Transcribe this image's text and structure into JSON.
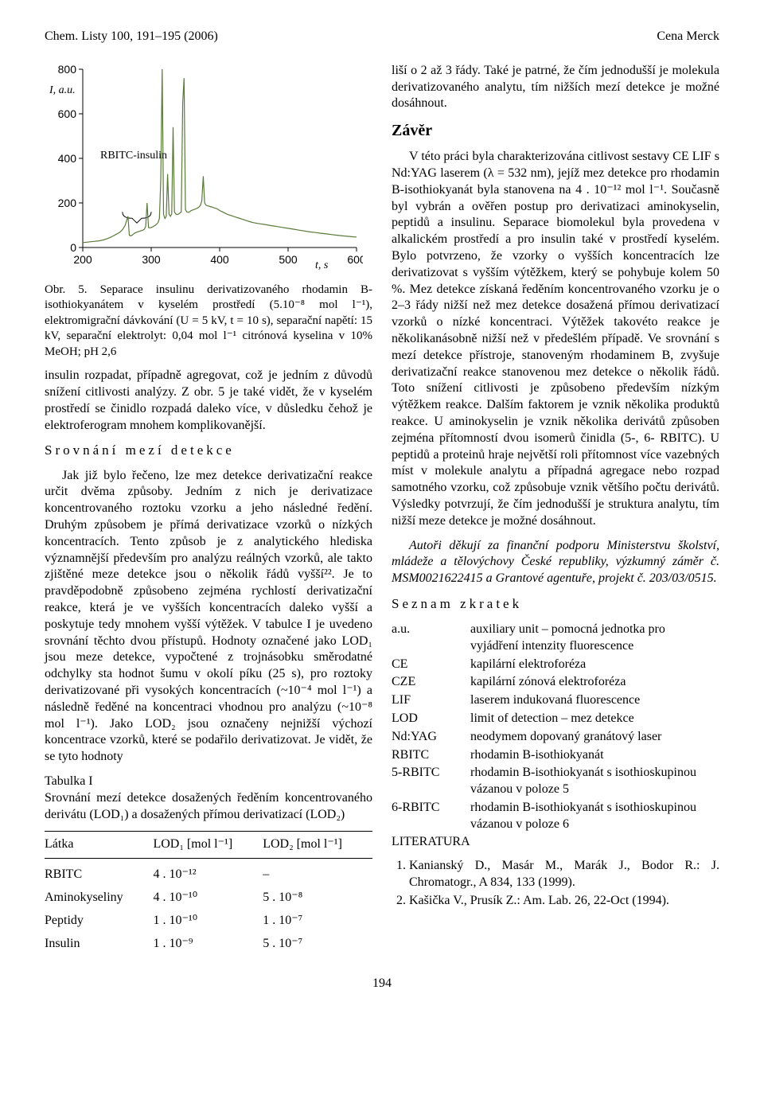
{
  "header": {
    "left": "Chem. Listy 100, 191–195 (2006)",
    "right": "Cena Merck"
  },
  "page_number": "194",
  "left_col": {
    "figure": {
      "y_axis_label": "I, a.u.",
      "x_axis_label": "t, s",
      "annotation": "RBITC-insulin",
      "y_ticks": [
        0,
        200,
        400,
        600,
        800
      ],
      "x_ticks": [
        200,
        300,
        400,
        500,
        600
      ],
      "xlim": [
        200,
        600
      ],
      "ylim": [
        0,
        800
      ],
      "line_color": "#5a7a3a",
      "axis_color": "#000000",
      "background_color": "#ffffff",
      "fontsize": 14,
      "points": [
        [
          200,
          22
        ],
        [
          206,
          24
        ],
        [
          212,
          26
        ],
        [
          218,
          28
        ],
        [
          224,
          30
        ],
        [
          230,
          34
        ],
        [
          236,
          40
        ],
        [
          242,
          48
        ],
        [
          248,
          58
        ],
        [
          254,
          68
        ],
        [
          258,
          80
        ],
        [
          262,
          100
        ],
        [
          266,
          140
        ],
        [
          268,
          55
        ],
        [
          270,
          52
        ],
        [
          272,
          55
        ],
        [
          274,
          60
        ],
        [
          276,
          65
        ],
        [
          278,
          68
        ],
        [
          280,
          70
        ],
        [
          282,
          72
        ],
        [
          284,
          74
        ],
        [
          286,
          76
        ],
        [
          288,
          78
        ],
        [
          290,
          82
        ],
        [
          292,
          95
        ],
        [
          294,
          200
        ],
        [
          296,
          90
        ],
        [
          298,
          88
        ],
        [
          300,
          90
        ],
        [
          302,
          92
        ],
        [
          304,
          96
        ],
        [
          306,
          100
        ],
        [
          308,
          105
        ],
        [
          310,
          112
        ],
        [
          312,
          130
        ],
        [
          314,
          300
        ],
        [
          316,
          820
        ],
        [
          318,
          150
        ],
        [
          320,
          130
        ],
        [
          322,
          140
        ],
        [
          324,
          330
        ],
        [
          326,
          150
        ],
        [
          328,
          140
        ],
        [
          330,
          150
        ],
        [
          332,
          540
        ],
        [
          334,
          160
        ],
        [
          336,
          150
        ],
        [
          338,
          148
        ],
        [
          340,
          150
        ],
        [
          342,
          155
        ],
        [
          344,
          160
        ],
        [
          346,
          650
        ],
        [
          348,
          760
        ],
        [
          350,
          170
        ],
        [
          352,
          160
        ],
        [
          354,
          158
        ],
        [
          356,
          160
        ],
        [
          358,
          165
        ],
        [
          360,
          168
        ],
        [
          362,
          170
        ],
        [
          364,
          172
        ],
        [
          366,
          175
        ],
        [
          368,
          178
        ],
        [
          370,
          182
        ],
        [
          372,
          190
        ],
        [
          374,
          210
        ],
        [
          376,
          320
        ],
        [
          378,
          200
        ],
        [
          380,
          190
        ],
        [
          382,
          188
        ],
        [
          384,
          186
        ],
        [
          386,
          184
        ],
        [
          388,
          182
        ],
        [
          390,
          180
        ],
        [
          392,
          178
        ],
        [
          394,
          176
        ],
        [
          396,
          174
        ],
        [
          398,
          170
        ],
        [
          400,
          166
        ],
        [
          404,
          160
        ],
        [
          408,
          154
        ],
        [
          412,
          148
        ],
        [
          416,
          144
        ],
        [
          420,
          140
        ],
        [
          424,
          136
        ],
        [
          428,
          132
        ],
        [
          432,
          128
        ],
        [
          436,
          124
        ],
        [
          440,
          120
        ],
        [
          444,
          116
        ],
        [
          448,
          112
        ],
        [
          452,
          110
        ],
        [
          456,
          108
        ],
        [
          460,
          106
        ],
        [
          464,
          104
        ],
        [
          468,
          102
        ],
        [
          472,
          100
        ],
        [
          476,
          98
        ],
        [
          480,
          96
        ],
        [
          484,
          94
        ],
        [
          488,
          92
        ],
        [
          492,
          90
        ],
        [
          496,
          88
        ],
        [
          500,
          86
        ],
        [
          508,
          82
        ],
        [
          516,
          78
        ],
        [
          524,
          74
        ],
        [
          532,
          70
        ],
        [
          540,
          67
        ],
        [
          548,
          64
        ],
        [
          556,
          61
        ],
        [
          564,
          58
        ],
        [
          572,
          55
        ],
        [
          580,
          52
        ],
        [
          588,
          50
        ],
        [
          596,
          48
        ],
        [
          600,
          47
        ]
      ]
    },
    "caption": "Obr. 5. Separace insulinu derivatizovaného rhodamin B-isothiokyanátem v kyselém prostředí (5.10⁻⁸ mol l⁻¹), elektromigrační dávkování (U = 5 kV, t = 10 s), separační napětí: 15 kV, separační elektrolyt: 0,04 mol l⁻¹ citrónová kyselina v 10% MeOH; pH 2,6",
    "para1": "insulin rozpadat, případně agregovat, což je jedním z důvodů snížení citlivosti analýzy. Z obr. 5 je také vidět, že v kyselém prostředí se činidlo rozpadá daleko více, v důsledku čehož je elektroferogram mnohem komplikovanější.",
    "subheading": "Srovnání mezí detekce",
    "para2": "Jak již bylo řečeno, lze mez detekce derivatizační reakce určit dvěma způsoby. Jedním z nich je derivatizace koncentrovaného roztoku vzorku a jeho následné ředění. Druhým způsobem je přímá derivatizace vzorků o nízkých koncentracích. Tento způsob je z analytického hlediska významnější především pro analýzu reálných vzorků, ale takto zjištěné meze detekce jsou o několik řádů vyšší²². Je to pravděpodobně způsobeno zejména rychlostí derivatizační reakce, která je ve vyšších koncentracích daleko vyšší a poskytuje tedy mnohem vyšší výtěžek. V tabulce I je uvedeno srovnání těchto dvou přístupů. Hodnoty označené jako LOD₁ jsou meze detekce, vypočtené z trojnásobku směrodatné odchylky sta hodnot šumu v okolí píku (25 s), pro roztoky derivatizované při vysokých koncentracích (~10⁻⁴ mol l⁻¹) a následně ředěné na koncentraci vhodnou pro analýzu (~10⁻⁸ mol l⁻¹). Jako LOD₂ jsou označeny nejnižší výchozí koncentrace vzorků, které se podařilo derivatizovat. Je vidět, že se tyto hodnoty",
    "table": {
      "title": "Tabulka I",
      "caption": "Srovnání mezí detekce dosažených ředěním koncentrovaného derivátu (LOD₁) a dosažených přímou derivatizací (LOD₂)",
      "columns": [
        "Látka",
        "LOD₁ [mol l⁻¹]",
        "LOD₂ [mol l⁻¹]"
      ],
      "rows": [
        [
          "RBITC",
          "4 . 10⁻¹²",
          "–"
        ],
        [
          "Aminokyseliny",
          "4 . 10⁻¹⁰",
          "5 . 10⁻⁸"
        ],
        [
          "Peptidy",
          "1 . 10⁻¹⁰",
          "1 . 10⁻⁷"
        ],
        [
          "Insulin",
          "1 . 10⁻⁹",
          "5 . 10⁻⁷"
        ]
      ]
    }
  },
  "right_col": {
    "para_top": "liší o 2 až 3 řády. Také je patrné, že čím jednodušší je molekula derivatizovaného analytu, tím nižších mezí detekce je možné dosáhnout.",
    "zaver_heading": "Závěr",
    "zaver_body": "V této práci byla charakterizována citlivost sestavy CE LIF s Nd:YAG laserem (λ = 532 nm), jejíž mez detekce pro rhodamin B-isothiokyanát byla stanovena na 4 . 10⁻¹² mol l⁻¹. Současně byl vybrán a ověřen postup pro derivatizaci aminokyselin, peptidů a insulinu. Separace biomolekul byla provedena v alkalickém prostředí a pro insulin také v prostředí kyselém. Bylo potvrzeno, že vzorky o vyšších koncentracích lze derivatizovat s vyšším výtěžkem, který se pohybuje kolem 50 %. Mez detekce získaná ředěním koncentrovaného vzorku je o 2–3 řády nižší než mez detekce dosažená přímou derivatizací vzorků o nízké koncentraci. Výtěžek takovéto reakce je několikanásobně nižší než v předešlém případě. Ve srovnání s mezí detekce přístroje, stanoveným rhodaminem B, zvyšuje derivatizační reakce stanovenou mez detekce o několik řádů. Toto snížení citlivosti je způsobeno především nízkým výtěžkem reakce. Dalším faktorem je vznik několika produktů reakce. U aminokyselin je vznik několika derivátů způsoben zejména přítomností dvou isomerů činidla (5-, 6- RBITC). U peptidů a proteinů hraje největší roli přítomnost více vazebných míst v molekule analytu a případná agregace nebo rozpad samotného vzorku, což způsobuje vznik většího počtu derivátů. Výsledky potvrzují, že čím jednodušší je struktura analytu, tím nižší meze detekce je možné dosáhnout.",
    "ack": "Autoři děkují za finanční podporu Ministerstvu školství, mládeže a tělovýchovy České republiky, výzkumný záměr č. MSM0021622415 a Grantové agentuře, projekt č. 203/03/0515.",
    "abbrev_heading": "Seznam zkratek",
    "abbrev": [
      [
        "a.u.",
        "auxiliary unit – pomocná jednotka pro vyjádření intenzity fluorescence"
      ],
      [
        "CE",
        "kapilární elektroforéza"
      ],
      [
        "CZE",
        "kapilární zónová elektroforéza"
      ],
      [
        "LIF",
        "laserem indukovaná fluorescence"
      ],
      [
        "LOD",
        "limit of detection – mez detekce"
      ],
      [
        "Nd:YAG",
        "neodymem dopovaný granátový laser"
      ],
      [
        "RBITC",
        "rhodamin B-isothiokyanát"
      ],
      [
        "5-RBITC",
        "rhodamin B-isothiokyanát s isothioskupinou vázanou v poloze 5"
      ],
      [
        "6-RBITC",
        "rhodamin B-isothiokyanát s isothioskupinou vázanou v poloze 6"
      ]
    ],
    "lit_heading": "LITERATURA",
    "refs": [
      "Kanianský D., Masár M., Marák J., Bodor R.: J. Chromatogr., A 834, 133 (1999).",
      "Kašička V., Prusík Z.: Am. Lab. 26, 22-Oct (1994)."
    ]
  }
}
